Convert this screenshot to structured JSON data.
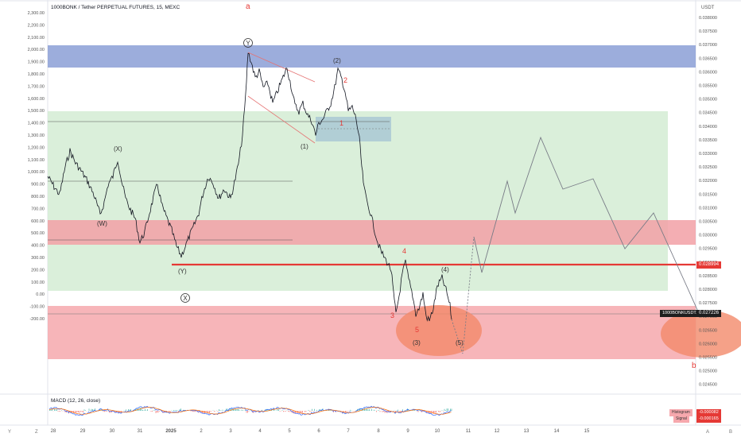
{
  "header": {
    "symbol_title": "1000BONK / Tether PERPETUAL FUTURES, 15, MEXC"
  },
  "left_axis": {
    "labels": [
      "2,300.00",
      "2,200.00",
      "2,100.00",
      "2,000.00",
      "1,900.00",
      "1,800.00",
      "1,700.00",
      "1,600.00",
      "1,500.00",
      "1,400.00",
      "1,300.00",
      "1,200.00",
      "1,100.00",
      "1,000.00",
      "900.00",
      "800.00",
      "700.00",
      "600.00",
      "500.00",
      "400.00",
      "300.00",
      "200.00",
      "100.00",
      "0.00",
      "-100.00",
      "-200.00"
    ]
  },
  "right_axis": {
    "currency": "USDT",
    "labels": [
      "0.038000",
      "0.037500",
      "0.037000",
      "0.036500",
      "0.036000",
      "0.035500",
      "0.035000",
      "0.034500",
      "0.034000",
      "0.033500",
      "0.033000",
      "0.032500",
      "0.032000",
      "0.031500",
      "0.031000",
      "0.030500",
      "0.030000",
      "0.029500",
      "0.029000",
      "0.028500",
      "0.028000",
      "0.027500",
      "0.027000",
      "0.026500",
      "0.026000",
      "0.025500",
      "0.025000",
      "0.024500"
    ],
    "price_tag": "0.028994",
    "symbol_tag": "1000BONKUSDT.P",
    "last_price": "0.027226"
  },
  "wave_labels": {
    "a": "a",
    "b": "b",
    "Y_top": "Y",
    "X_circle": "X",
    "wX": "(X)",
    "wW": "(W)",
    "wY": "(Y)",
    "w1p": "(1)",
    "w2p": "(2)",
    "w3p": "(3)",
    "w4p": "(4)",
    "w5p": "(5)",
    "r1": "1",
    "r2": "2",
    "r3": "3",
    "r4": "4",
    "r5": "5"
  },
  "macd": {
    "title": "MACD (12, 26, close)",
    "histogram_label": "Histogram",
    "histogram_value": "-0.000082",
    "signal_label": "Signal",
    "signal_value": "-0.000165"
  },
  "time_axis": {
    "labels": [
      "28",
      "29",
      "30",
      "31",
      "2025",
      "2",
      "3",
      "4",
      "5",
      "6",
      "7",
      "8",
      "9",
      "10",
      "11",
      "12",
      "13",
      "14",
      "15"
    ]
  },
  "bottom_controls": {
    "left_icon": "Y",
    "left_icon2": "Z",
    "right_icon": "A",
    "right_icon2": "B"
  },
  "colors": {
    "blue_zone": "#8b9fd6",
    "green_zone": "#d4ecd4",
    "red_zone": "#f6a8ad",
    "price_line": "#e53935",
    "wave_red": "#e53935",
    "ellipse": "#f28a6a"
  }
}
